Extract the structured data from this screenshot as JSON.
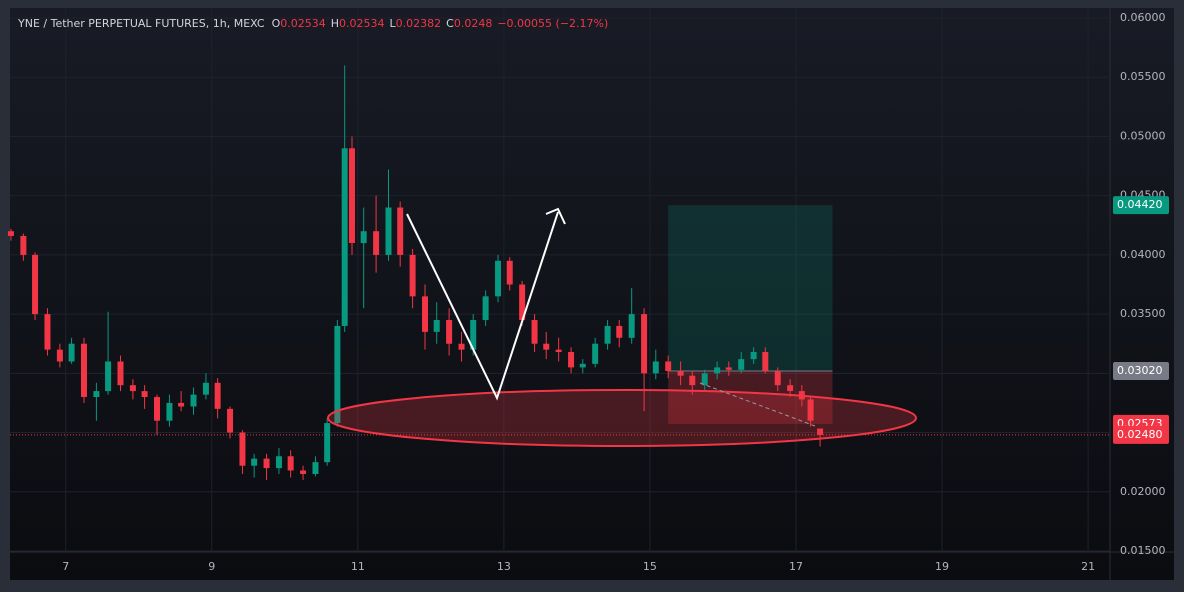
{
  "chart_data": {
    "type": "candlestick",
    "title": "YNE / Tether PERPETUAL FUTURES, 1h, MEXC",
    "ohlc_legend": [
      {
        "label": "O",
        "value": 0.02534
      },
      {
        "label": "H",
        "value": 0.02534
      },
      {
        "label": "L",
        "value": 0.02382
      },
      {
        "label": "C",
        "value": 0.0248
      }
    ],
    "change": "−0.00055 (−2.17%)",
    "x": [
      6.25,
      6.42,
      6.58,
      6.75,
      6.92,
      7.08,
      7.25,
      7.42,
      7.58,
      7.75,
      7.92,
      8.08,
      8.25,
      8.42,
      8.58,
      8.75,
      8.92,
      9.08,
      9.25,
      9.42,
      9.58,
      9.75,
      9.92,
      10.08,
      10.25,
      10.42,
      10.58,
      10.72,
      10.82,
      10.92,
      11.08,
      11.25,
      11.42,
      11.58,
      11.75,
      11.92,
      12.08,
      12.25,
      12.42,
      12.58,
      12.75,
      12.92,
      13.08,
      13.25,
      13.42,
      13.58,
      13.75,
      13.92,
      14.08,
      14.25,
      14.42,
      14.58,
      14.75,
      14.92,
      15.08,
      15.25,
      15.42,
      15.58,
      15.75,
      15.92,
      16.08,
      16.25,
      16.42,
      16.58,
      16.75,
      16.92,
      17.08,
      17.2,
      17.33
    ],
    "open": [
      0.042,
      0.0416,
      0.04,
      0.035,
      0.032,
      0.031,
      0.0325,
      0.028,
      0.0285,
      0.031,
      0.029,
      0.0285,
      0.028,
      0.026,
      0.0275,
      0.0272,
      0.0282,
      0.0292,
      0.027,
      0.025,
      0.0222,
      0.0228,
      0.022,
      0.023,
      0.0218,
      0.0215,
      0.0225,
      0.0258,
      0.034,
      0.049,
      0.041,
      0.042,
      0.04,
      0.044,
      0.04,
      0.0365,
      0.0335,
      0.0345,
      0.0325,
      0.032,
      0.0345,
      0.0365,
      0.0395,
      0.0375,
      0.0345,
      0.0325,
      0.032,
      0.0318,
      0.0305,
      0.0308,
      0.0325,
      0.034,
      0.033,
      0.035,
      0.03,
      0.031,
      0.0302,
      0.0298,
      0.029,
      0.03,
      0.0305,
      0.0303,
      0.0312,
      0.0318,
      0.0302,
      0.029,
      0.0285,
      0.0278,
      0.02534
    ],
    "high": [
      0.0422,
      0.0418,
      0.0402,
      0.0355,
      0.0325,
      0.033,
      0.033,
      0.0292,
      0.0352,
      0.0315,
      0.0295,
      0.029,
      0.0282,
      0.0282,
      0.0285,
      0.0288,
      0.03,
      0.0296,
      0.0272,
      0.0252,
      0.0232,
      0.0232,
      0.0237,
      0.0235,
      0.0222,
      0.023,
      0.0262,
      0.0345,
      0.056,
      0.05,
      0.044,
      0.045,
      0.0472,
      0.0445,
      0.0405,
      0.0375,
      0.036,
      0.0355,
      0.0335,
      0.035,
      0.037,
      0.04,
      0.0398,
      0.0378,
      0.035,
      0.0335,
      0.033,
      0.0322,
      0.0312,
      0.033,
      0.0345,
      0.0345,
      0.0372,
      0.0355,
      0.032,
      0.0315,
      0.031,
      0.0302,
      0.0303,
      0.031,
      0.031,
      0.0318,
      0.0322,
      0.0322,
      0.0305,
      0.0295,
      0.029,
      0.028,
      0.02534
    ],
    "low": [
      0.0412,
      0.0395,
      0.0345,
      0.0315,
      0.0305,
      0.0308,
      0.0275,
      0.026,
      0.0282,
      0.0285,
      0.0278,
      0.027,
      0.0248,
      0.0255,
      0.0268,
      0.0265,
      0.0278,
      0.0262,
      0.0245,
      0.0215,
      0.0212,
      0.021,
      0.0215,
      0.0212,
      0.021,
      0.0213,
      0.0222,
      0.0255,
      0.0335,
      0.04,
      0.0355,
      0.0385,
      0.0395,
      0.039,
      0.0355,
      0.032,
      0.0325,
      0.0315,
      0.031,
      0.0315,
      0.034,
      0.036,
      0.037,
      0.034,
      0.0318,
      0.0312,
      0.031,
      0.03,
      0.03,
      0.0305,
      0.032,
      0.0322,
      0.0325,
      0.0268,
      0.0295,
      0.0296,
      0.029,
      0.0282,
      0.0285,
      0.0295,
      0.0298,
      0.03,
      0.0308,
      0.03,
      0.0285,
      0.028,
      0.0272,
      0.0255,
      0.02382
    ],
    "close": [
      0.0416,
      0.04,
      0.035,
      0.032,
      0.031,
      0.0325,
      0.028,
      0.0285,
      0.031,
      0.029,
      0.0285,
      0.028,
      0.026,
      0.0275,
      0.0272,
      0.0282,
      0.0292,
      0.027,
      0.025,
      0.0222,
      0.0228,
      0.022,
      0.023,
      0.0218,
      0.0215,
      0.0225,
      0.0258,
      0.034,
      0.049,
      0.041,
      0.042,
      0.04,
      0.044,
      0.04,
      0.0365,
      0.0335,
      0.0345,
      0.0325,
      0.032,
      0.0345,
      0.0365,
      0.0395,
      0.0375,
      0.0345,
      0.0325,
      0.032,
      0.0318,
      0.0305,
      0.0308,
      0.0325,
      0.034,
      0.033,
      0.035,
      0.03,
      0.031,
      0.0302,
      0.0298,
      0.029,
      0.03,
      0.0305,
      0.0303,
      0.0312,
      0.0318,
      0.0302,
      0.029,
      0.0285,
      0.0278,
      0.026,
      0.0248
    ],
    "up_color": "#089981",
    "down_color": "#f23645",
    "xlim": [
      6.1,
      21.3
    ],
    "xticks": [
      7,
      9,
      11,
      13,
      15,
      17,
      19,
      21
    ],
    "ylim": [
      0.015,
      0.06
    ],
    "yticks": [
      {
        "value": 0.015,
        "label": "0.01500"
      },
      {
        "value": 0.02,
        "label": "0.02000"
      },
      {
        "value": 0.025,
        "label": "0.02500"
      },
      {
        "value": 0.03,
        "label": "0.03000"
      },
      {
        "value": 0.035,
        "label": "0.03500"
      },
      {
        "value": 0.04,
        "label": "0.04000"
      },
      {
        "value": 0.045,
        "label": "0.04500"
      },
      {
        "value": 0.05,
        "label": "0.05000"
      },
      {
        "value": 0.055,
        "label": "0.05500"
      },
      {
        "value": 0.06,
        "label": "0.06000"
      }
    ],
    "grid": true,
    "position": {
      "x": [
        15.25,
        17.5
      ],
      "target": 0.0442,
      "entry": 0.0302,
      "stop": 0.02573
    },
    "price_tags": [
      {
        "value": 0.0442,
        "label": "0.04420",
        "color": "#089981"
      },
      {
        "value": 0.0302,
        "label": "0.03020",
        "color": "#787b86"
      },
      {
        "value": 0.02573,
        "label": "0.02573",
        "color": "#f23645"
      },
      {
        "value": 0.0248,
        "label": "0.02480",
        "color": "#f23645"
      }
    ]
  }
}
